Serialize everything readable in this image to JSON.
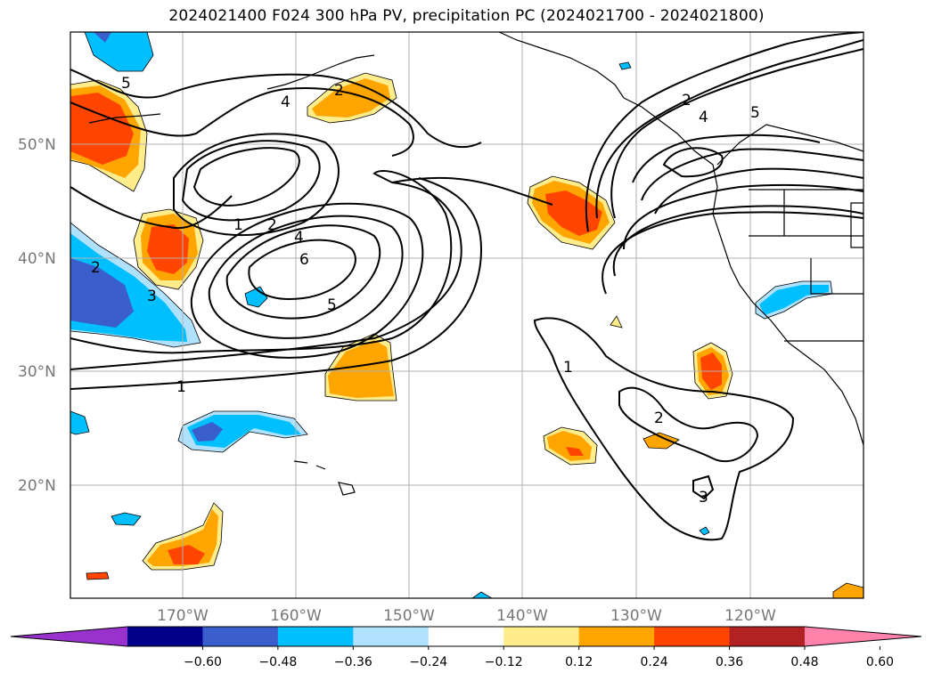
{
  "title": "2024021400 F024 300 hPa PV, precipitation PC (2024021700 - 2024021800)",
  "lat_labels": [
    "50°N",
    "40°N",
    "30°N",
    "20°N"
  ],
  "lon_labels": [
    "170°W",
    "160°W",
    "150°W",
    "140°W",
    "130°W",
    "120°W"
  ],
  "contour_labels": [
    "5",
    "4",
    "2",
    "1",
    "2",
    "4",
    "6",
    "5",
    "3",
    "2",
    "1",
    "1",
    "2",
    "3",
    "2",
    "4",
    "5"
  ],
  "colorbar": {
    "ticks": [
      "−0.60",
      "−0.48",
      "−0.36",
      "−0.24",
      "−0.12",
      "0.12",
      "0.24",
      "0.36",
      "0.48",
      "0.60"
    ],
    "colors": [
      "#9932cc",
      "#00008b",
      "#3a5fcd",
      "#00bfff",
      "#b0e2ff",
      "#ffffff",
      "#ffec8b",
      "#ffa500",
      "#ff4500",
      "#b22222",
      "#ff82ab"
    ]
  },
  "palette": {
    "neg_strong": "#3a5fcd",
    "neg_mid": "#00bfff",
    "neg_weak": "#b0e2ff",
    "pos_weak": "#ffec8b",
    "pos_mid": "#ffa500",
    "pos_strong": "#ff4500",
    "grid": "#b0b0b0"
  }
}
